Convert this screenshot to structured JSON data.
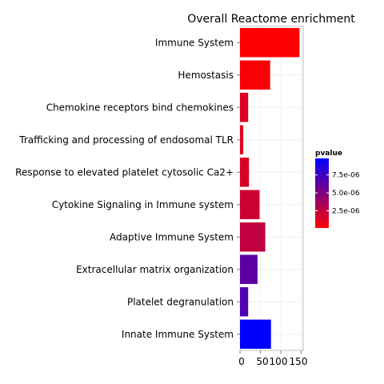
{
  "chart_data": {
    "type": "bar",
    "orientation": "horizontal",
    "title": "Overall Reactome enrichment",
    "xlabel": "",
    "ylabel": "",
    "xlim": [
      0,
      155
    ],
    "xticks": [
      0,
      50,
      100,
      150
    ],
    "xtick_labels": [
      "0",
      "50",
      "100",
      "150"
    ],
    "categories": [
      "Immune System",
      "Hemostasis",
      "Chemokine receptors bind chemokines",
      "Trafficking and processing of endosomal TLR",
      "Response to elevated platelet cytosolic Ca2+",
      "Cytokine Signaling in Immune system",
      "Adaptive Immune System",
      "Extracellular matrix organization",
      "Platelet degranulation ",
      "Innate Immune System"
    ],
    "values": [
      146,
      74,
      20,
      8,
      22,
      48,
      62,
      43,
      20,
      76
    ],
    "pvalues": [
      1e-07,
      3e-07,
      1.4e-06,
      1.3e-06,
      1.5e-06,
      2e-06,
      2.5e-06,
      6.3e-06,
      6.8e-06,
      9.8e-06
    ],
    "grid": true,
    "legend": {
      "title": "pvalue",
      "position": "right",
      "labels": [
        "7.5e-06",
        "5.0e-06",
        "2.5e-06"
      ],
      "label_values": [
        7.5e-06,
        5e-06,
        2.5e-06
      ],
      "range": [
        1e-07,
        9.8e-06
      ],
      "low_color": "#ff0000",
      "high_color": "#0000ff"
    }
  }
}
